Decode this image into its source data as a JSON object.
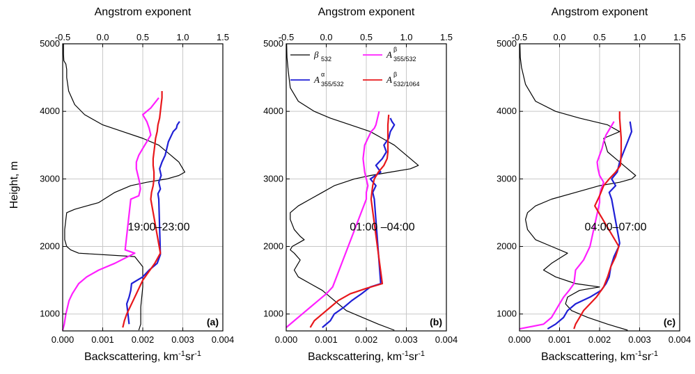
{
  "figure": {
    "ylabel": "Height, m",
    "colors": {
      "beta": "#000000",
      "alpha": "#1f1fd6",
      "magenta": "#ff1fff",
      "red": "#e8171b",
      "grid": "#c8c8c8"
    }
  },
  "legend": {
    "beta_sym": "β",
    "beta_sub": "532",
    "alpha_sym": "A",
    "alpha_sup": "α",
    "alpha_sub": "355/532",
    "mag_sym": "A",
    "mag_sup": "β",
    "mag_sub": "355/532",
    "red_sym": "A",
    "red_sup": "β",
    "red_sub": "532/1064"
  },
  "chart_data": [
    {
      "type": "line",
      "panel_label": "(a)",
      "annotation": "19:00–23:00",
      "xlabel": "Backscattering, km",
      "xlabel_sup1": "-1",
      "xlabel_mid": "sr",
      "xlabel_sup2": "-1",
      "x2label": "Angstrom exponent",
      "ylabel": "Height, m",
      "xlim": [
        0,
        0.004
      ],
      "x_ticks": [
        "0.000",
        "0.001",
        "0.002",
        "0.003",
        "0.004"
      ],
      "x2lim": [
        -0.5,
        1.5
      ],
      "x2_ticks": [
        "-0.5",
        "0.0",
        "0.5",
        "1.0",
        "1.5"
      ],
      "ylim": [
        750,
        5000
      ],
      "y_ticks": [
        "1000",
        "2000",
        "3000",
        "4000",
        "5000"
      ],
      "grid": true,
      "series": [
        {
          "key": "beta",
          "axis": "bottom",
          "color": "#000000",
          "x": [
            0.0019,
            0.00195,
            0.00195,
            0.002,
            0.002,
            0.0018,
            0.0004,
            0.0002,
            0.0001,
            5e-05,
            5e-05,
            8e-05,
            0.0001,
            0.0003,
            0.0006,
            0.0009,
            0.0013,
            0.0017,
            0.0021,
            0.0026,
            0.0029,
            0.00305,
            0.0029,
            0.0027,
            0.0024,
            0.002,
            0.0015,
            0.001,
            0.00055,
            0.0003,
            0.00015,
            0.0001,
            0.0001,
            8e-05,
            3e-05,
            2e-05,
            2e-05
          ],
          "y": [
            760,
            850,
            1100,
            1400,
            1700,
            1850,
            1900,
            1950,
            2000,
            2100,
            2250,
            2400,
            2500,
            2550,
            2600,
            2650,
            2800,
            2900,
            2950,
            3000,
            3050,
            3100,
            3250,
            3350,
            3500,
            3600,
            3700,
            3800,
            3950,
            4100,
            4300,
            4500,
            4620,
            4700,
            4750,
            4850,
            5000
          ]
        },
        {
          "key": "magenta",
          "axis": "top",
          "color": "#ff1fff",
          "x": [
            -0.5,
            -0.48,
            -0.46,
            -0.44,
            -0.42,
            -0.38,
            -0.3,
            -0.2,
            -0.05,
            0.15,
            0.4,
            0.28,
            0.35,
            0.45,
            0.47,
            0.46,
            0.44,
            0.42,
            0.42,
            0.45,
            0.5,
            0.55,
            0.6,
            0.58,
            0.55,
            0.5,
            0.6,
            0.7
          ],
          "y": [
            760,
            850,
            1000,
            1100,
            1200,
            1300,
            1450,
            1550,
            1650,
            1750,
            1900,
            1950,
            2700,
            2750,
            2850,
            2950,
            3050,
            3150,
            3250,
            3350,
            3450,
            3550,
            3650,
            3750,
            3850,
            3950,
            4050,
            4200
          ]
        },
        {
          "key": "alpha",
          "axis": "top",
          "color": "#1f1fd6",
          "x": [
            0.33,
            0.32,
            0.31,
            0.3,
            0.33,
            0.35,
            0.36,
            0.5,
            0.58,
            0.68,
            0.72,
            0.7,
            0.69,
            0.72,
            0.7,
            0.73,
            0.71,
            0.74,
            0.78,
            0.8,
            0.82,
            0.86,
            0.88,
            0.92,
            0.93,
            0.96
          ],
          "y": [
            850,
            950,
            1050,
            1150,
            1250,
            1350,
            1450,
            1550,
            1650,
            1750,
            1880,
            2700,
            2780,
            2850,
            2950,
            3050,
            3150,
            3250,
            3350,
            3450,
            3550,
            3650,
            3700,
            3750,
            3800,
            3850
          ]
        },
        {
          "key": "red",
          "axis": "top",
          "color": "#e8171b",
          "x": [
            0.25,
            0.27,
            0.3,
            0.34,
            0.38,
            0.42,
            0.46,
            0.5,
            0.56,
            0.65,
            0.72,
            0.6,
            0.61,
            0.63,
            0.64,
            0.64,
            0.63,
            0.63,
            0.64,
            0.65,
            0.66,
            0.68,
            0.69,
            0.71,
            0.72,
            0.73,
            0.74,
            0.74
          ],
          "y": [
            800,
            900,
            1000,
            1100,
            1200,
            1300,
            1400,
            1500,
            1600,
            1750,
            1900,
            2700,
            2800,
            2900,
            3000,
            3100,
            3200,
            3300,
            3400,
            3500,
            3600,
            3700,
            3800,
            3900,
            4000,
            4100,
            4200,
            4300
          ]
        }
      ]
    },
    {
      "type": "line",
      "panel_label": "(b)",
      "annotation": "01:00 –04:00",
      "xlabel": "Backscattering, km",
      "xlabel_sup1": "-1",
      "xlabel_mid": "sr",
      "xlabel_sup2": "-1",
      "x2label": "Angstrom exponent",
      "xlim": [
        0,
        0.004
      ],
      "x_ticks": [
        "0.000",
        "0.001",
        "0.002",
        "0.003",
        "0.004"
      ],
      "x2lim": [
        -0.5,
        1.5
      ],
      "x2_ticks": [
        "-0.5",
        "0.0",
        "0.5",
        "1.0",
        "1.5"
      ],
      "ylim": [
        750,
        5000
      ],
      "y_ticks": [
        "1000",
        "2000",
        "3000",
        "4000",
        "5000"
      ],
      "grid": true,
      "series": [
        {
          "key": "beta",
          "axis": "bottom",
          "color": "#000000",
          "x": [
            0.0027,
            0.0023,
            0.0019,
            0.0015,
            0.0013,
            0.0011,
            0.0009,
            0.0006,
            0.0003,
            0.0002,
            0.00035,
            0.0002,
            0.0001,
            0.00015,
            0.0003,
            0.00045,
            0.00035,
            0.0002,
            0.0001,
            0.0001,
            0.0003,
            0.0006,
            0.0009,
            0.0012,
            0.0017,
            0.0021,
            0.0026,
            0.0031,
            0.0033,
            0.003,
            0.0027,
            0.0024,
            0.0021,
            0.0016,
            0.0011,
            0.0007,
            0.0003,
            0.0001,
            5e-05,
            2e-05,
            1e-05
          ],
          "y": [
            760,
            850,
            950,
            1050,
            1150,
            1250,
            1350,
            1450,
            1550,
            1650,
            1800,
            1900,
            1950,
            2000,
            2050,
            2100,
            2150,
            2250,
            2400,
            2500,
            2600,
            2700,
            2800,
            2900,
            3000,
            3050,
            3100,
            3150,
            3200,
            3350,
            3500,
            3600,
            3700,
            3800,
            3900,
            4000,
            4150,
            4350,
            4600,
            4800,
            5000
          ]
        },
        {
          "key": "magenta",
          "axis": "top",
          "color": "#ff1fff",
          "x": [
            -0.5,
            -0.4,
            -0.3,
            -0.2,
            -0.1,
            0.0,
            0.08,
            0.5,
            0.5,
            0.52,
            0.5,
            0.48,
            0.47,
            0.46,
            0.47,
            0.48,
            0.5,
            0.52,
            0.54,
            0.56,
            0.6,
            0.62,
            0.64,
            0.66
          ],
          "y": [
            800,
            900,
            1000,
            1100,
            1200,
            1300,
            1400,
            2700,
            2800,
            2900,
            3000,
            3100,
            3200,
            3300,
            3400,
            3500,
            3550,
            3600,
            3650,
            3700,
            3750,
            3800,
            3900,
            4000
          ]
        },
        {
          "key": "alpha",
          "axis": "top",
          "color": "#1f1fd6",
          "x": [
            -0.05,
            0.05,
            0.1,
            0.22,
            0.32,
            0.44,
            0.55,
            0.68,
            0.6,
            0.58,
            0.62,
            0.55,
            0.68,
            0.62,
            0.7,
            0.75,
            0.72,
            0.78,
            0.8,
            0.85,
            0.82,
            0.8
          ],
          "y": [
            800,
            900,
            1000,
            1100,
            1200,
            1300,
            1400,
            1450,
            2700,
            2800,
            2900,
            3000,
            3100,
            3200,
            3300,
            3400,
            3500,
            3600,
            3700,
            3800,
            3850,
            3900
          ]
        },
        {
          "key": "red",
          "axis": "top",
          "color": "#e8171b",
          "x": [
            -0.2,
            -0.15,
            -0.05,
            0.05,
            0.15,
            0.3,
            0.5,
            0.7,
            0.56,
            0.57,
            0.58,
            0.6,
            0.65,
            0.72,
            0.76,
            0.77,
            0.77,
            0.77,
            0.77,
            0.77,
            0.78
          ],
          "y": [
            800,
            900,
            1000,
            1100,
            1200,
            1300,
            1380,
            1450,
            2700,
            2800,
            2900,
            3000,
            3100,
            3200,
            3300,
            3400,
            3500,
            3600,
            3700,
            3800,
            3950
          ]
        }
      ]
    },
    {
      "type": "line",
      "panel_label": "(c)",
      "annotation": "04:00–07:00",
      "xlabel": "Backscattering, km",
      "xlabel_sup1": "-1",
      "xlabel_mid": "sr",
      "xlabel_sup2": "-1",
      "x2label": "Angstrom exponent",
      "xlim": [
        0,
        0.004
      ],
      "x_ticks": [
        "0.000",
        "0.001",
        "0.002",
        "0.003",
        "0.004"
      ],
      "x2lim": [
        -0.5,
        1.5
      ],
      "x2_ticks": [
        "-0.5",
        "0.0",
        "0.5",
        "1.0",
        "1.5"
      ],
      "ylim": [
        750,
        5000
      ],
      "y_ticks": [
        "1000",
        "2000",
        "3000",
        "4000",
        "5000"
      ],
      "grid": true,
      "series": [
        {
          "key": "beta",
          "axis": "bottom",
          "color": "#000000",
          "x": [
            0.0027,
            0.0022,
            0.0017,
            0.0013,
            0.00115,
            0.0012,
            0.0015,
            0.002,
            0.0014,
            0.0009,
            0.0006,
            0.0008,
            0.0012,
            0.0008,
            0.0004,
            0.0002,
            0.00015,
            0.0002,
            0.0004,
            0.0008,
            0.0014,
            0.002,
            0.0025,
            0.0028,
            0.0029,
            0.0026,
            0.0022,
            0.0021,
            0.0025,
            0.0022,
            0.0015,
            0.0009,
            0.0004,
            0.00015,
            5e-05,
            2e-05,
            1e-05
          ],
          "y": [
            760,
            850,
            950,
            1050,
            1150,
            1250,
            1350,
            1400,
            1450,
            1550,
            1650,
            1750,
            1900,
            2000,
            2100,
            2250,
            2400,
            2500,
            2600,
            2700,
            2800,
            2900,
            2950,
            3000,
            3050,
            3200,
            3400,
            3600,
            3700,
            3800,
            3900,
            4000,
            4150,
            4400,
            4650,
            4800,
            5000
          ]
        },
        {
          "key": "magenta",
          "axis": "top",
          "color": "#ff1fff",
          "x": [
            -0.5,
            -0.2,
            -0.1,
            -0.05,
            0.0,
            0.05,
            0.12,
            0.18,
            0.2,
            0.3,
            0.38,
            0.5,
            0.5,
            0.52,
            0.55,
            0.5,
            0.48,
            0.47,
            0.5,
            0.53,
            0.55,
            0.58,
            0.63,
            0.68
          ],
          "y": [
            780,
            850,
            950,
            1050,
            1150,
            1250,
            1350,
            1450,
            1650,
            1800,
            2000,
            2650,
            2750,
            2850,
            2950,
            3050,
            3150,
            3250,
            3350,
            3450,
            3550,
            3650,
            3750,
            3850
          ]
        },
        {
          "key": "alpha",
          "axis": "top",
          "color": "#1f1fd6",
          "x": [
            -0.15,
            -0.05,
            0.05,
            0.1,
            0.2,
            0.38,
            0.52,
            0.58,
            0.62,
            0.64,
            0.68,
            0.72,
            0.74,
            0.75,
            0.65,
            0.62,
            0.7,
            0.65,
            0.72,
            0.75,
            0.8,
            0.85,
            0.9,
            0.88
          ],
          "y": [
            780,
            850,
            950,
            1050,
            1150,
            1250,
            1350,
            1450,
            1550,
            1700,
            1850,
            1950,
            2000,
            2050,
            2700,
            2800,
            2900,
            3000,
            3100,
            3250,
            3400,
            3550,
            3700,
            3850
          ]
        },
        {
          "key": "red",
          "axis": "top",
          "color": "#e8171b",
          "x": [
            0.18,
            0.2,
            0.25,
            0.3,
            0.38,
            0.46,
            0.55,
            0.6,
            0.64,
            0.7,
            0.74,
            0.44,
            0.5,
            0.55,
            0.62,
            0.7,
            0.76,
            0.77,
            0.77,
            0.76,
            0.75,
            0.75
          ],
          "y": [
            780,
            850,
            950,
            1050,
            1150,
            1250,
            1400,
            1550,
            1700,
            1850,
            2000,
            2600,
            2750,
            2900,
            3000,
            3100,
            3200,
            3400,
            3600,
            3750,
            3900,
            4000
          ]
        }
      ]
    }
  ]
}
